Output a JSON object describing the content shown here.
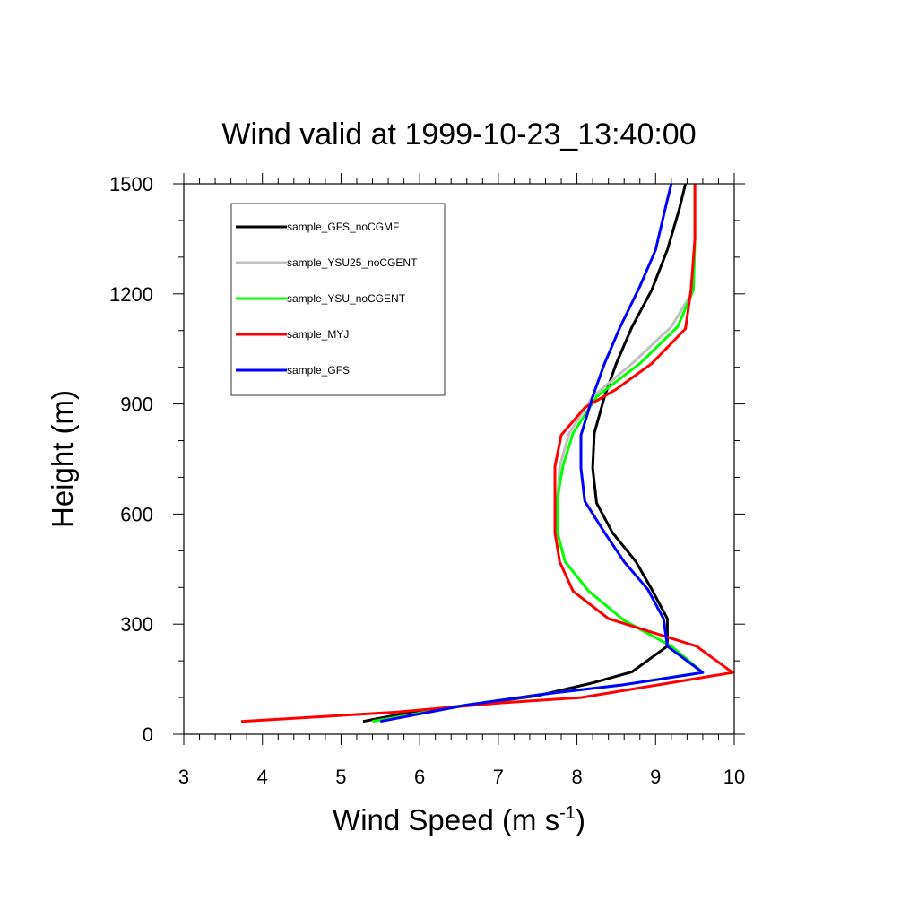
{
  "chart_data": {
    "type": "line",
    "title": "Wind valid at 1999-10-23_13:40:00",
    "xlabel": "Wind Speed (m s",
    "xlabel_sup": "-1",
    "xlabel_end": ")",
    "ylabel": "Height (m)",
    "xlim": [
      3,
      10
    ],
    "ylim": [
      0,
      1500
    ],
    "xticks": [
      3,
      4,
      5,
      6,
      7,
      8,
      9,
      10
    ],
    "yticks": [
      0,
      300,
      600,
      900,
      1200,
      1500
    ],
    "grid": false,
    "legend_position": "top-left",
    "series": [
      {
        "name": "sample_GFS_noCGMF",
        "color": "#000000",
        "points": [
          [
            5.28,
            35
          ],
          [
            5.9,
            60
          ],
          [
            6.8,
            85
          ],
          [
            7.5,
            105
          ],
          [
            8.2,
            140
          ],
          [
            8.7,
            170
          ],
          [
            9.15,
            240
          ],
          [
            9.15,
            315
          ],
          [
            8.95,
            395
          ],
          [
            8.75,
            470
          ],
          [
            8.45,
            550
          ],
          [
            8.25,
            630
          ],
          [
            8.2,
            725
          ],
          [
            8.22,
            820
          ],
          [
            8.35,
            920
          ],
          [
            8.5,
            1010
          ],
          [
            8.7,
            1110
          ],
          [
            8.95,
            1210
          ],
          [
            9.15,
            1320
          ],
          [
            9.3,
            1430
          ],
          [
            9.38,
            1500
          ]
        ]
      },
      {
        "name": "sample_YSU25_noCGENT",
        "color": "#c0c0c0",
        "points": [
          [
            5.4,
            35
          ],
          [
            6.6,
            80
          ],
          [
            7.6,
            110
          ],
          [
            8.6,
            135
          ],
          [
            9.6,
            168
          ],
          [
            9.2,
            240
          ],
          [
            8.6,
            310
          ],
          [
            8.15,
            390
          ],
          [
            7.85,
            470
          ],
          [
            7.75,
            550
          ],
          [
            7.75,
            640
          ],
          [
            7.78,
            730
          ],
          [
            7.9,
            820
          ],
          [
            8.2,
            920
          ],
          [
            8.7,
            1010
          ],
          [
            9.2,
            1110
          ],
          [
            9.48,
            1210
          ],
          [
            9.5,
            1350
          ],
          [
            9.5,
            1500
          ]
        ]
      },
      {
        "name": "sample_YSU_noCGENT",
        "color": "#00ff00",
        "points": [
          [
            5.4,
            35
          ],
          [
            6.6,
            80
          ],
          [
            7.6,
            110
          ],
          [
            8.6,
            135
          ],
          [
            9.6,
            168
          ],
          [
            9.2,
            240
          ],
          [
            8.6,
            310
          ],
          [
            8.15,
            390
          ],
          [
            7.85,
            470
          ],
          [
            7.75,
            550
          ],
          [
            7.75,
            640
          ],
          [
            7.82,
            730
          ],
          [
            7.95,
            820
          ],
          [
            8.25,
            920
          ],
          [
            8.8,
            1010
          ],
          [
            9.28,
            1110
          ],
          [
            9.48,
            1210
          ],
          [
            9.5,
            1350
          ],
          [
            9.5,
            1500
          ]
        ]
      },
      {
        "name": "sample_MYJ",
        "color": "#ff0000",
        "points": [
          [
            3.73,
            35
          ],
          [
            5.7,
            60
          ],
          [
            7.0,
            85
          ],
          [
            8.05,
            100
          ],
          [
            9.98,
            168
          ],
          [
            9.52,
            240
          ],
          [
            8.4,
            315
          ],
          [
            7.95,
            390
          ],
          [
            7.78,
            470
          ],
          [
            7.72,
            550
          ],
          [
            7.72,
            640
          ],
          [
            7.72,
            730
          ],
          [
            7.8,
            815
          ],
          [
            8.1,
            890
          ],
          [
            8.5,
            940
          ],
          [
            8.95,
            1010
          ],
          [
            9.38,
            1105
          ],
          [
            9.45,
            1210
          ],
          [
            9.5,
            1350
          ],
          [
            9.5,
            1500
          ]
        ]
      },
      {
        "name": "sample_GFS",
        "color": "#0000ff",
        "points": [
          [
            5.5,
            35
          ],
          [
            6.6,
            80
          ],
          [
            7.6,
            110
          ],
          [
            8.6,
            135
          ],
          [
            9.6,
            168
          ],
          [
            9.15,
            240
          ],
          [
            9.1,
            315
          ],
          [
            8.9,
            395
          ],
          [
            8.6,
            470
          ],
          [
            8.35,
            550
          ],
          [
            8.1,
            635
          ],
          [
            8.05,
            725
          ],
          [
            8.05,
            815
          ],
          [
            8.2,
            920
          ],
          [
            8.35,
            1010
          ],
          [
            8.55,
            1110
          ],
          [
            8.8,
            1220
          ],
          [
            9.0,
            1320
          ],
          [
            9.12,
            1430
          ],
          [
            9.2,
            1500
          ]
        ]
      }
    ]
  }
}
